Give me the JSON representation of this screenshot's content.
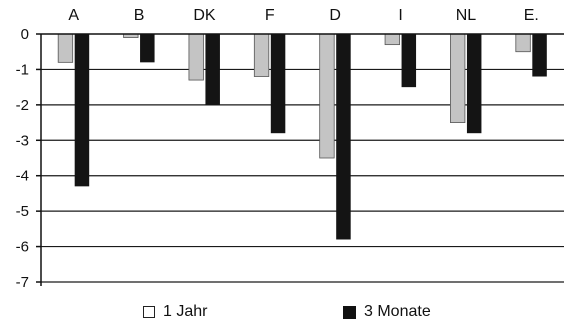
{
  "chart_data": {
    "type": "bar",
    "categories": [
      "A",
      "B",
      "DK",
      "F",
      "D",
      "I",
      "NL",
      "E."
    ],
    "series": [
      {
        "name": "1 Jahr",
        "values": [
          -0.8,
          -0.1,
          -1.3,
          -1.2,
          -3.5,
          -0.3,
          -2.5,
          -0.5
        ],
        "color": "#c4c4c4"
      },
      {
        "name": "3 Monate",
        "values": [
          -4.3,
          -0.8,
          -2.0,
          -2.8,
          -5.8,
          -1.5,
          -2.8,
          -1.2
        ],
        "color": "#141414"
      }
    ],
    "ylim": [
      -7,
      0
    ],
    "yticks": [
      "0",
      "-1",
      "-2",
      "-3",
      "-4",
      "-5",
      "-6",
      "-7"
    ],
    "ytick_values": [
      0,
      -1,
      -2,
      -3,
      -4,
      -5,
      -6,
      -7
    ],
    "grid": true,
    "category_axis_position": "top",
    "legend_position": "bottom"
  }
}
